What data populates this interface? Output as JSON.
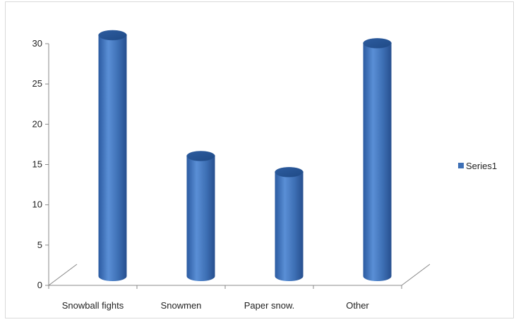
{
  "chart_data": {
    "type": "bar",
    "style": "3d-cylinder",
    "categories": [
      "Snowball fights",
      "Snowmen",
      "Paper snow.",
      "Other"
    ],
    "series": [
      {
        "name": "Series1",
        "values": [
          30,
          15,
          13,
          29
        ],
        "color": "#3e70b6"
      }
    ],
    "ylim": [
      0,
      30
    ],
    "yticks": [
      0,
      5,
      10,
      15,
      20,
      25,
      30
    ],
    "grid": false,
    "legend": "right"
  }
}
